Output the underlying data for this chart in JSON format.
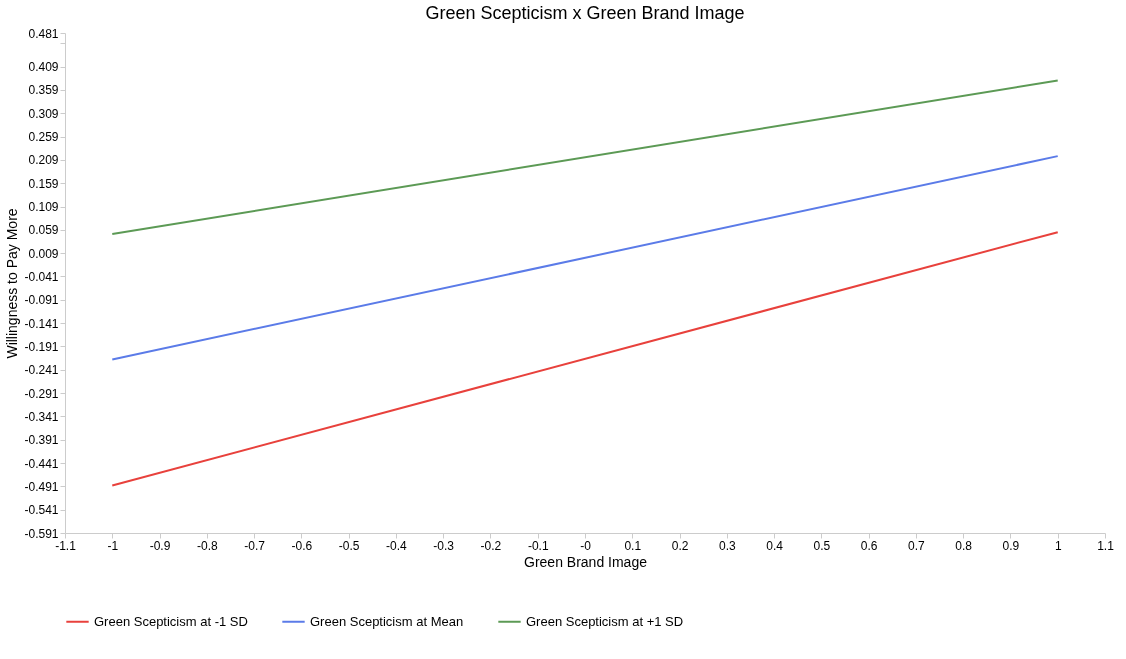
{
  "chart_data": {
    "type": "line",
    "title": "Green Scepticism x Green Brand Image",
    "xlabel": "Green Brand Image",
    "ylabel": "Willingness to Pay More",
    "x": [
      -1,
      1
    ],
    "series": [
      {
        "name": "Green Scepticism at -1 SD",
        "color": "#e8413c",
        "values": [
          -0.489,
          0.054
        ]
      },
      {
        "name": "Green Scepticism at Mean",
        "color": "#5b7be8",
        "values": [
          -0.219,
          0.217
        ]
      },
      {
        "name": "Green Scepticism at +1 SD",
        "color": "#5c9a55",
        "values": [
          0.05,
          0.379
        ]
      }
    ],
    "xlim": [
      -1.1,
      1.1
    ],
    "xticks": [
      -1.1,
      -1,
      -0.9,
      -0.8,
      -0.7,
      -0.6,
      -0.5,
      -0.4,
      -0.3,
      -0.2,
      -0.1,
      {
        "value": 0,
        "label": "-0"
      },
      0.1,
      0.2,
      0.3,
      0.4,
      0.5,
      0.6,
      0.7,
      0.8,
      0.9,
      1,
      1.1
    ],
    "ylim": [
      -0.591,
      0.481
    ],
    "yticks": [
      -0.591,
      -0.541,
      -0.491,
      -0.441,
      -0.391,
      -0.341,
      -0.291,
      -0.241,
      -0.191,
      -0.141,
      -0.091,
      -0.041,
      0.009,
      0.059,
      0.109,
      0.159,
      0.209,
      0.259,
      0.309,
      0.359,
      0.409,
      {
        "value": 0.459,
        "label": null
      },
      0.481
    ],
    "grid": false,
    "legend": "bottom",
    "marker": "none",
    "line_style": "solid"
  }
}
